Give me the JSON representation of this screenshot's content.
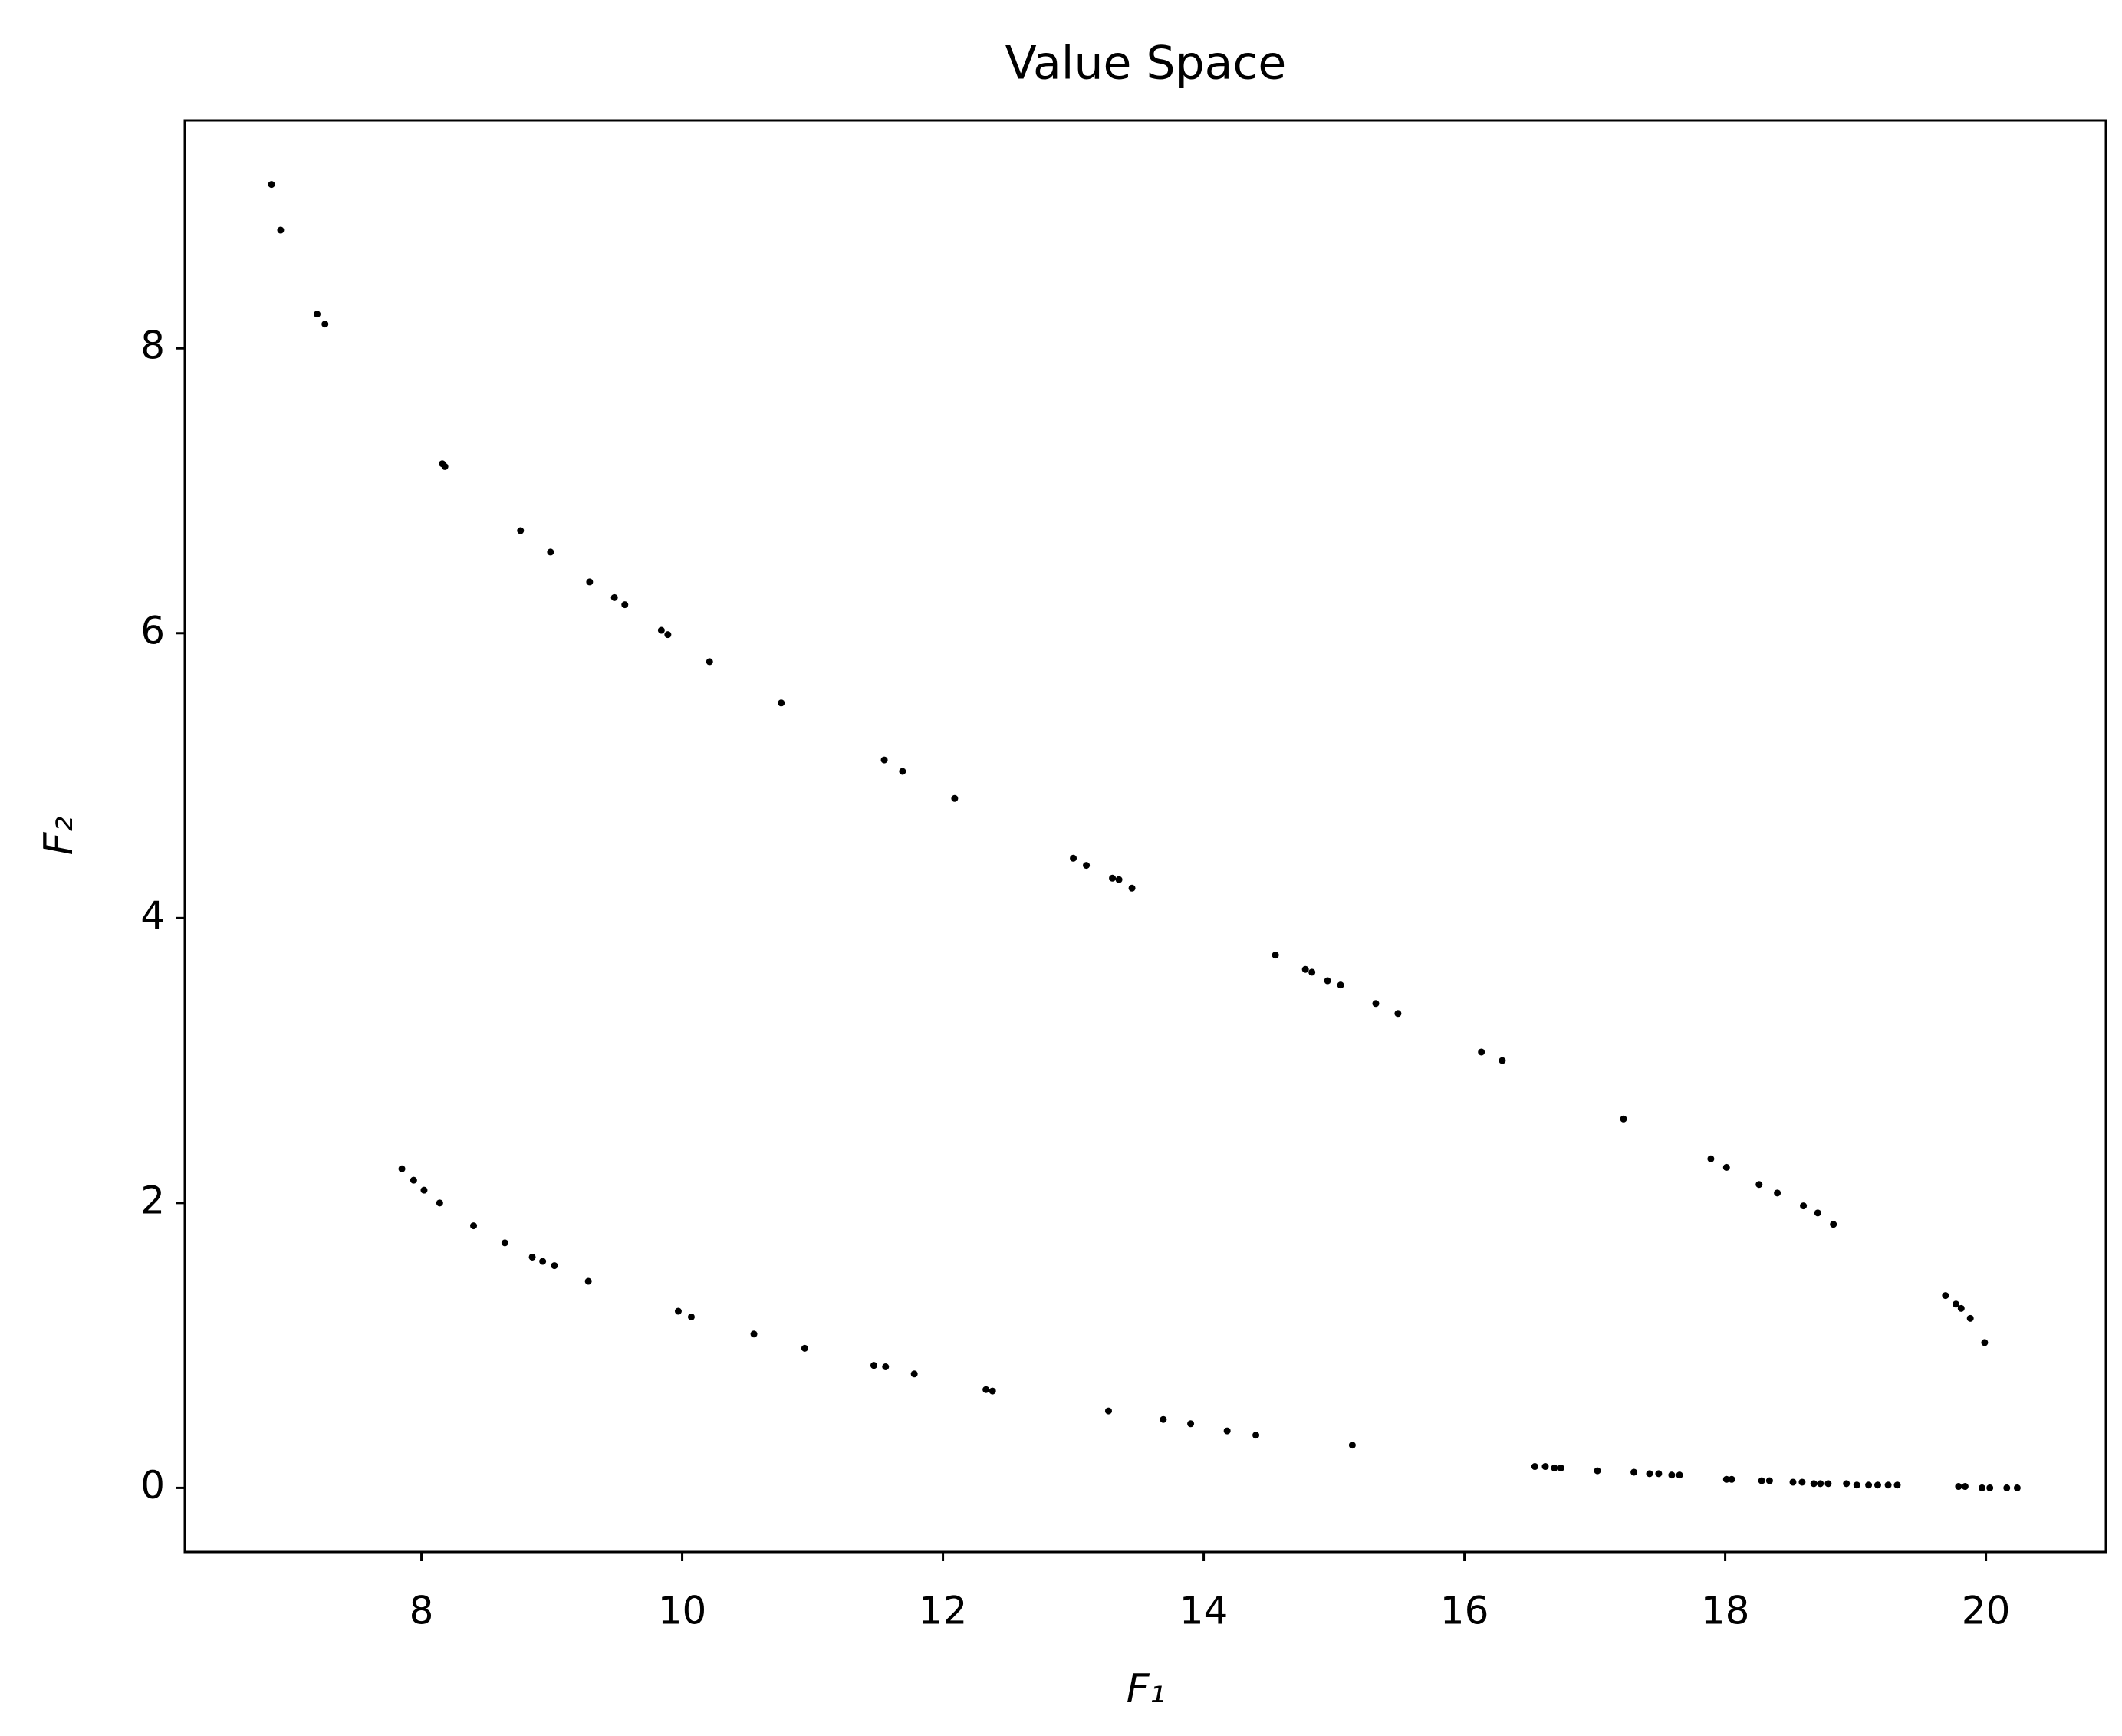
{
  "chart_data": {
    "type": "scatter",
    "title": "Value Space",
    "xlabel": "F₁",
    "ylabel": "F₂",
    "color": "#000000",
    "xlim": [
      6.185,
      20.92
    ],
    "ylim": [
      -0.45,
      9.6
    ],
    "xticks": [
      8,
      10,
      12,
      14,
      16,
      18,
      20
    ],
    "yticks": [
      0,
      2,
      4,
      6,
      8
    ],
    "x": [
      6.85,
      6.92,
      7.2,
      7.26,
      8.16,
      8.18,
      8.76,
      8.99,
      9.29,
      9.48,
      9.56,
      9.84,
      9.89,
      10.21,
      10.76,
      11.55,
      11.69,
      12.09,
      13.0,
      13.1,
      13.3,
      13.35,
      13.45,
      14.55,
      14.78,
      14.83,
      14.95,
      15.05,
      15.32,
      15.49,
      16.13,
      16.29,
      17.22,
      17.89,
      18.01,
      18.26,
      18.4,
      18.6,
      18.71,
      18.83,
      19.69,
      19.77,
      19.81,
      19.88,
      19.99,
      7.85,
      7.94,
      8.02,
      8.14,
      8.4,
      8.64,
      8.85,
      8.93,
      9.02,
      9.28,
      9.97,
      10.07,
      10.55,
      10.94,
      11.47,
      11.56,
      11.78,
      12.33,
      12.38,
      13.27,
      13.69,
      13.9,
      14.18,
      14.4,
      15.14,
      16.54,
      16.62,
      16.69,
      16.74,
      17.02,
      17.3,
      17.42,
      17.49,
      17.59,
      17.65,
      18.01,
      18.05,
      18.28,
      18.34,
      18.52,
      18.59,
      18.68,
      18.73,
      18.79,
      18.93,
      19.01,
      19.1,
      19.17,
      19.25,
      19.32,
      19.79,
      19.84,
      19.97,
      20.03,
      20.16,
      20.24
    ],
    "values": [
      9.15,
      8.83,
      8.24,
      8.17,
      7.19,
      7.17,
      6.72,
      6.57,
      6.36,
      6.25,
      6.2,
      6.02,
      5.99,
      5.8,
      5.51,
      5.11,
      5.03,
      4.84,
      4.42,
      4.37,
      4.28,
      4.27,
      4.21,
      3.74,
      3.64,
      3.62,
      3.56,
      3.53,
      3.4,
      3.33,
      3.06,
      3.0,
      2.59,
      2.31,
      2.25,
      2.13,
      2.07,
      1.98,
      1.93,
      1.85,
      1.35,
      1.29,
      1.26,
      1.19,
      1.02,
      2.24,
      2.16,
      2.09,
      2.0,
      1.84,
      1.72,
      1.62,
      1.59,
      1.56,
      1.45,
      1.24,
      1.2,
      1.08,
      0.98,
      0.86,
      0.85,
      0.8,
      0.69,
      0.68,
      0.54,
      0.48,
      0.45,
      0.4,
      0.37,
      0.3,
      0.15,
      0.15,
      0.14,
      0.14,
      0.12,
      0.11,
      0.1,
      0.1,
      0.09,
      0.09,
      0.06,
      0.06,
      0.05,
      0.05,
      0.04,
      0.04,
      0.03,
      0.03,
      0.03,
      0.03,
      0.02,
      0.02,
      0.02,
      0.02,
      0.02,
      0.01,
      0.01,
      0.0,
      0.0,
      0.0,
      0.0
    ]
  }
}
